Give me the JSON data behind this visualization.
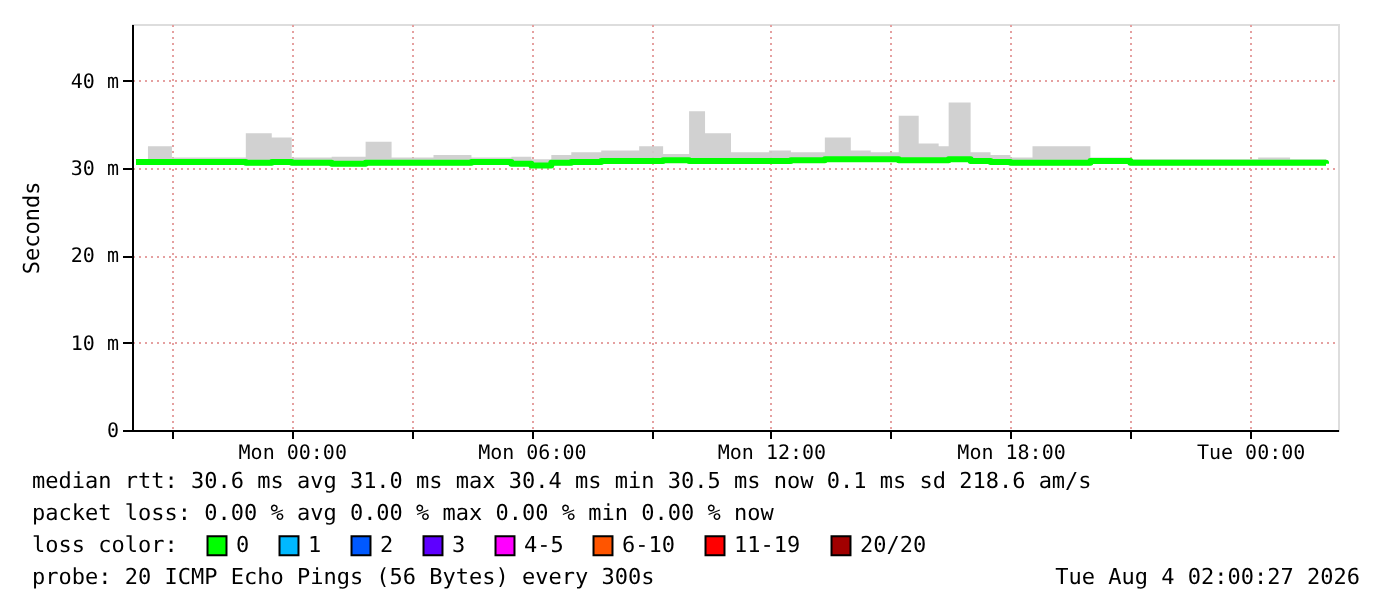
{
  "chart_data": {
    "type": "line",
    "ylabel": "Seconds",
    "legend_title": "loss color:",
    "legend": "bottom",
    "grid": true,
    "marker": "none",
    "line_style": "solid",
    "xlim": [
      "2026-08-02T20:00",
      "2026-08-04T02:12"
    ],
    "ylim": [
      0,
      46.5
    ],
    "xticks": [
      {
        "value": "2026-08-02T21:00",
        "label": null
      },
      {
        "value": "2026-08-03T00:00",
        "label": "Mon 00:00"
      },
      {
        "value": "2026-08-03T03:00",
        "label": null
      },
      {
        "value": "2026-08-03T06:00",
        "label": "Mon 06:00"
      },
      {
        "value": "2026-08-03T09:00",
        "label": null
      },
      {
        "value": "2026-08-03T12:00",
        "label": "Mon 12:00"
      },
      {
        "value": "2026-08-03T15:00",
        "label": null
      },
      {
        "value": "2026-08-03T18:00",
        "label": "Mon 18:00"
      },
      {
        "value": "2026-08-03T21:00",
        "label": null
      },
      {
        "value": "2026-08-04T00:00",
        "label": "Tue 00:00"
      }
    ],
    "yticks": [
      0,
      {
        "value": 10,
        "label": "10 m"
      },
      {
        "value": 20,
        "label": "20 m"
      },
      {
        "value": 30,
        "label": "30 m"
      },
      {
        "value": 40,
        "label": "40 m"
      }
    ],
    "x": [
      "2026-08-02T20:06",
      "2026-08-02T20:24",
      "2026-08-02T21:00",
      "2026-08-02T22:00",
      "2026-08-02T22:51",
      "2026-08-02T23:30",
      "2026-08-03T00:00",
      "2026-08-03T01:00",
      "2026-08-03T01:51",
      "2026-08-03T02:30",
      "2026-08-03T03:33",
      "2026-08-03T04:30",
      "2026-08-03T05:30",
      "2026-08-03T06:00",
      "2026-08-03T06:30",
      "2026-08-03T07:00",
      "2026-08-03T07:45",
      "2026-08-03T08:42",
      "2026-08-03T09:18",
      "2026-08-03T09:57",
      "2026-08-03T10:21",
      "2026-08-03T11:00",
      "2026-08-03T11:57",
      "2026-08-03T12:30",
      "2026-08-03T13:21",
      "2026-08-03T14:00",
      "2026-08-03T14:30",
      "2026-08-03T15:12",
      "2026-08-03T15:42",
      "2026-08-03T16:12",
      "2026-08-03T16:27",
      "2026-08-03T17:00",
      "2026-08-03T17:30",
      "2026-08-03T18:00",
      "2026-08-03T18:33",
      "2026-08-03T19:15",
      "2026-08-03T20:00",
      "2026-08-03T21:00",
      "2026-08-03T22:00",
      "2026-08-03T23:00",
      "2026-08-04T00:12",
      "2026-08-04T01:00",
      "2026-08-04T01:54"
    ],
    "series": [
      {
        "name": "0",
        "color": "#00ff00",
        "values": [
          30.7,
          30.7,
          30.7,
          30.7,
          30.6,
          30.7,
          30.6,
          30.5,
          30.6,
          30.6,
          30.6,
          30.7,
          30.5,
          30.3,
          30.6,
          30.7,
          30.8,
          30.8,
          30.9,
          30.8,
          30.8,
          30.8,
          30.8,
          30.9,
          31.0,
          31.0,
          31.0,
          30.9,
          30.9,
          30.9,
          31.0,
          30.8,
          30.7,
          30.6,
          30.6,
          30.6,
          30.8,
          30.6,
          30.6,
          30.6,
          30.6,
          30.6,
          30.5
        ],
        "lower": [
          30.4,
          30.4,
          30.4,
          30.4,
          30.3,
          30.4,
          30.3,
          30.2,
          30.3,
          30.3,
          30.3,
          30.4,
          30.2,
          30.0,
          30.3,
          30.4,
          30.5,
          30.5,
          30.6,
          30.5,
          30.5,
          30.5,
          30.5,
          30.6,
          30.7,
          30.7,
          30.7,
          30.6,
          30.6,
          30.6,
          30.7,
          30.5,
          30.4,
          30.3,
          30.3,
          30.3,
          30.5,
          30.3,
          30.3,
          30.3,
          30.3,
          30.3,
          30.2
        ],
        "upper": [
          31.0,
          32.5,
          31.2,
          31.2,
          34.0,
          33.5,
          31.2,
          31.3,
          33.0,
          31.2,
          31.5,
          31.2,
          31.3,
          31.0,
          31.5,
          31.8,
          32.0,
          32.5,
          31.6,
          36.5,
          34.0,
          31.8,
          32.0,
          31.8,
          33.5,
          32.0,
          31.8,
          36.0,
          32.8,
          32.5,
          37.5,
          31.8,
          31.5,
          31.2,
          32.5,
          32.5,
          31.2,
          31.0,
          31.0,
          31.0,
          31.2,
          31.0,
          30.9
        ]
      },
      {
        "name": "1",
        "color": "#00b8ff",
        "values": [
          null,
          null,
          null,
          null,
          null,
          null,
          null,
          null,
          null,
          null,
          null,
          null,
          null,
          null,
          null,
          null,
          null,
          null,
          null,
          null,
          null,
          null,
          null,
          null,
          null,
          null,
          null,
          null,
          null,
          null,
          null,
          null,
          null,
          null,
          null,
          null,
          null,
          null,
          null,
          null,
          null,
          null,
          null
        ]
      },
      {
        "name": "2",
        "color": "#0059ff",
        "values": [
          null,
          null,
          null,
          null,
          null,
          null,
          null,
          null,
          null,
          null,
          null,
          null,
          null,
          null,
          null,
          null,
          null,
          null,
          null,
          null,
          null,
          null,
          null,
          null,
          null,
          null,
          null,
          null,
          null,
          null,
          null,
          null,
          null,
          null,
          null,
          null,
          null,
          null,
          null,
          null,
          null,
          null,
          null
        ]
      },
      {
        "name": "3",
        "color": "#5e00ff",
        "values": [
          null,
          null,
          null,
          null,
          null,
          null,
          null,
          null,
          null,
          null,
          null,
          null,
          null,
          null,
          null,
          null,
          null,
          null,
          null,
          null,
          null,
          null,
          null,
          null,
          null,
          null,
          null,
          null,
          null,
          null,
          null,
          null,
          null,
          null,
          null,
          null,
          null,
          null,
          null,
          null,
          null,
          null,
          null
        ]
      },
      {
        "name": "4-5",
        "color": "#ff00ff",
        "values": [
          null,
          null,
          null,
          null,
          null,
          null,
          null,
          null,
          null,
          null,
          null,
          null,
          null,
          null,
          null,
          null,
          null,
          null,
          null,
          null,
          null,
          null,
          null,
          null,
          null,
          null,
          null,
          null,
          null,
          null,
          null,
          null,
          null,
          null,
          null,
          null,
          null,
          null,
          null,
          null,
          null,
          null,
          null
        ]
      },
      {
        "name": "6-10",
        "color": "#ff5500",
        "values": [
          null,
          null,
          null,
          null,
          null,
          null,
          null,
          null,
          null,
          null,
          null,
          null,
          null,
          null,
          null,
          null,
          null,
          null,
          null,
          null,
          null,
          null,
          null,
          null,
          null,
          null,
          null,
          null,
          null,
          null,
          null,
          null,
          null,
          null,
          null,
          null,
          null,
          null,
          null,
          null,
          null,
          null,
          null
        ]
      },
      {
        "name": "11-19",
        "color": "#ff0000",
        "values": [
          null,
          null,
          null,
          null,
          null,
          null,
          null,
          null,
          null,
          null,
          null,
          null,
          null,
          null,
          null,
          null,
          null,
          null,
          null,
          null,
          null,
          null,
          null,
          null,
          null,
          null,
          null,
          null,
          null,
          null,
          null,
          null,
          null,
          null,
          null,
          null,
          null,
          null,
          null,
          null,
          null,
          null,
          null
        ]
      },
      {
        "name": "20/20",
        "color": "#a10000",
        "values": [
          null,
          null,
          null,
          null,
          null,
          null,
          null,
          null,
          null,
          null,
          null,
          null,
          null,
          null,
          null,
          null,
          null,
          null,
          null,
          null,
          null,
          null,
          null,
          null,
          null,
          null,
          null,
          null,
          null,
          null,
          null,
          null,
          null,
          null,
          null,
          null,
          null,
          null,
          null,
          null,
          null,
          null,
          null
        ]
      }
    ],
    "annotations": [
      "median rtt:  30.6 ms avg  31.0 ms max  30.4 ms min  30.5 ms now  0.1 ms sd  218.6   am/s",
      "packet loss: 0.00 % avg  0.00 % max  0.00 % min  0.00 % now",
      "probe:       20 ICMP Echo Pings (56 Bytes) every 300s",
      "Tue Aug  4 02:00:27 2026"
    ]
  }
}
